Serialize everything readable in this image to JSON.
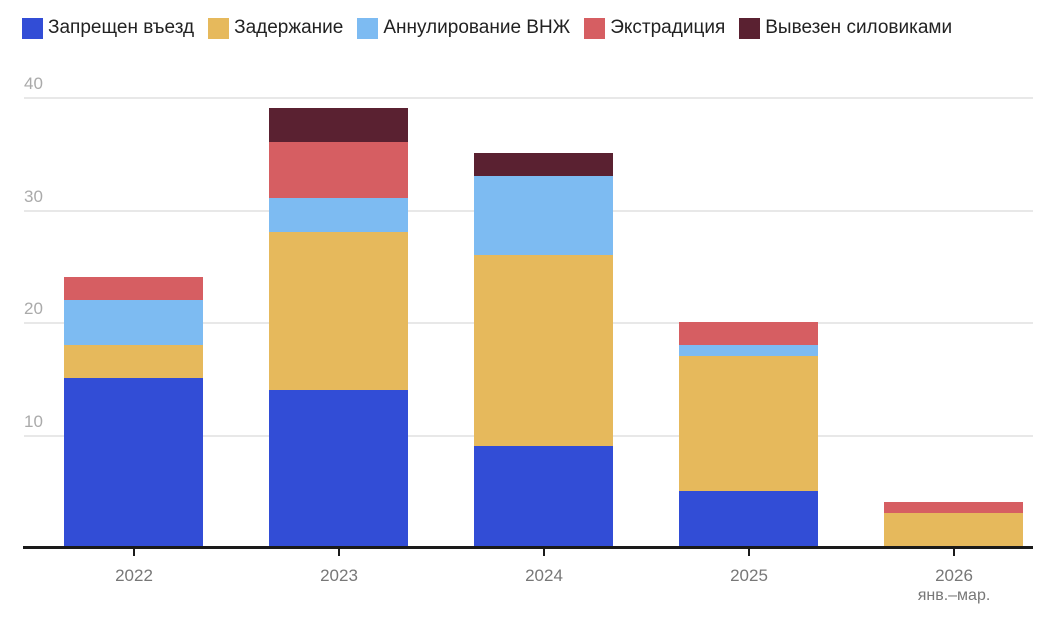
{
  "chart_data": {
    "type": "bar",
    "stacked": true,
    "title": "",
    "xlabel": "",
    "ylabel": "",
    "ylim": [
      0,
      40
    ],
    "yticks": [
      10,
      20,
      30,
      40
    ],
    "grid": true,
    "legend_position": "top",
    "categories": [
      "2022",
      "2023",
      "2024",
      "2025",
      "2026"
    ],
    "category_sublabels": [
      "",
      "",
      "",
      "",
      "янв.–мар."
    ],
    "series": [
      {
        "name": "Запрещен въезд",
        "color": "#324dd6",
        "values": [
          15,
          14,
          9,
          5,
          0
        ]
      },
      {
        "name": "Задержание",
        "color": "#e6b95c",
        "values": [
          3,
          14,
          17,
          12,
          3
        ]
      },
      {
        "name": "Аннулирование ВНЖ",
        "color": "#7dbbf2",
        "values": [
          4,
          3,
          7,
          1,
          0
        ]
      },
      {
        "name": "Экстрадиция",
        "color": "#d65e62",
        "values": [
          2,
          5,
          0,
          2,
          1
        ]
      },
      {
        "name": "Вывезен силовиками",
        "color": "#5a2131",
        "values": [
          0,
          3,
          2,
          0,
          0
        ]
      }
    ],
    "totals": [
      24,
      39,
      35,
      20,
      4
    ]
  },
  "legend": [
    {
      "label": "Запрещен въезд",
      "color": "#324dd6"
    },
    {
      "label": "Задержание",
      "color": "#e6b95c"
    },
    {
      "label": "Аннулирование ВНЖ",
      "color": "#7dbbf2"
    },
    {
      "label": "Экстрадиция",
      "color": "#d65e62"
    },
    {
      "label": "Вывезен силовиками",
      "color": "#5a2131"
    }
  ],
  "y_axis": {
    "ticks": [
      "10",
      "20",
      "30",
      "40"
    ]
  },
  "x_axis": {
    "labels": [
      "2022",
      "2023",
      "2024",
      "2025",
      "2026"
    ],
    "sublabels": [
      "",
      "",
      "",
      "",
      "янв.–мар."
    ]
  }
}
